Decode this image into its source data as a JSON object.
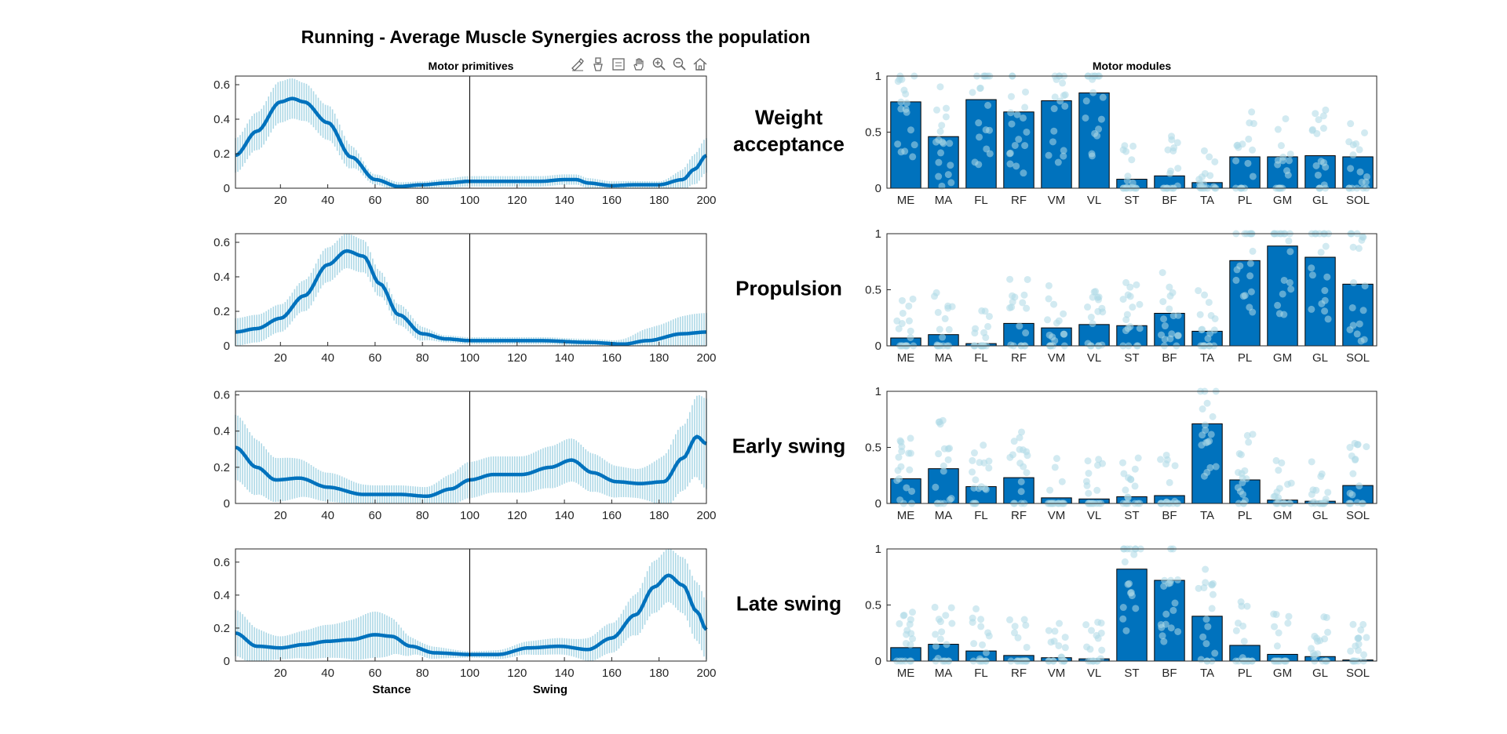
{
  "figure": {
    "title": "Running - Average Muscle Synergies across the population"
  },
  "toolbar": {
    "icons": [
      "brush-icon",
      "data-tips-icon",
      "datatip-list-icon",
      "pan-icon",
      "zoom-in-icon",
      "zoom-out-icon",
      "home-icon"
    ]
  },
  "colors": {
    "line": "#0072BD",
    "band": "#ADD8E6",
    "bar": "#0072BD",
    "dots": "#ADD8E6",
    "axis": "#262626"
  },
  "chart_data": [
    {
      "type": "line",
      "panel": "primitives",
      "row": 0,
      "title": "Motor primitives",
      "synergy_label": "Weight\nacceptance",
      "xlim": [
        1,
        200
      ],
      "ylim": [
        0,
        0.65
      ],
      "xticks": [
        20,
        40,
        60,
        80,
        100,
        120,
        140,
        160,
        180,
        200
      ],
      "yticks": [
        0,
        0.2,
        0.4,
        0.6
      ],
      "vline_x": 100,
      "mean": [
        [
          1,
          0.19
        ],
        [
          10,
          0.33
        ],
        [
          20,
          0.5
        ],
        [
          25,
          0.52
        ],
        [
          30,
          0.5
        ],
        [
          40,
          0.38
        ],
        [
          50,
          0.18
        ],
        [
          60,
          0.05
        ],
        [
          70,
          0.01
        ],
        [
          80,
          0.02
        ],
        [
          90,
          0.03
        ],
        [
          100,
          0.04
        ],
        [
          110,
          0.04
        ],
        [
          120,
          0.04
        ],
        [
          130,
          0.04
        ],
        [
          140,
          0.05
        ],
        [
          145,
          0.05
        ],
        [
          150,
          0.03
        ],
        [
          160,
          0.015
        ],
        [
          170,
          0.02
        ],
        [
          180,
          0.02
        ],
        [
          190,
          0.05
        ],
        [
          195,
          0.11
        ],
        [
          200,
          0.19
        ]
      ],
      "sd": [
        [
          1,
          0.1
        ],
        [
          20,
          0.12
        ],
        [
          40,
          0.1
        ],
        [
          60,
          0.03
        ],
        [
          80,
          0.02
        ],
        [
          100,
          0.03
        ],
        [
          140,
          0.03
        ],
        [
          180,
          0.02
        ],
        [
          200,
          0.1
        ]
      ]
    },
    {
      "type": "line",
      "panel": "primitives",
      "row": 1,
      "synergy_label": "Propulsion",
      "xlim": [
        1,
        200
      ],
      "ylim": [
        0,
        0.65
      ],
      "xticks": [
        20,
        40,
        60,
        80,
        100,
        120,
        140,
        160,
        180,
        200
      ],
      "yticks": [
        0,
        0.2,
        0.4,
        0.6
      ],
      "vline_x": 100,
      "mean": [
        [
          1,
          0.08
        ],
        [
          10,
          0.1
        ],
        [
          20,
          0.16
        ],
        [
          30,
          0.29
        ],
        [
          40,
          0.47
        ],
        [
          48,
          0.55
        ],
        [
          55,
          0.52
        ],
        [
          62,
          0.36
        ],
        [
          70,
          0.18
        ],
        [
          80,
          0.07
        ],
        [
          90,
          0.04
        ],
        [
          100,
          0.03
        ],
        [
          110,
          0.03
        ],
        [
          130,
          0.03
        ],
        [
          150,
          0.02
        ],
        [
          165,
          0.01
        ],
        [
          175,
          0.03
        ],
        [
          190,
          0.07
        ],
        [
          200,
          0.08
        ]
      ],
      "sd": [
        [
          1,
          0.08
        ],
        [
          20,
          0.08
        ],
        [
          40,
          0.1
        ],
        [
          50,
          0.1
        ],
        [
          70,
          0.06
        ],
        [
          90,
          0.02
        ],
        [
          120,
          0.02
        ],
        [
          160,
          0.02
        ],
        [
          180,
          0.08
        ],
        [
          195,
          0.11
        ],
        [
          200,
          0.11
        ]
      ]
    },
    {
      "type": "line",
      "panel": "primitives",
      "row": 2,
      "synergy_label": "Early swing",
      "xlim": [
        1,
        200
      ],
      "ylim": [
        0,
        0.62
      ],
      "xticks": [
        20,
        40,
        60,
        80,
        100,
        120,
        140,
        160,
        180,
        200
      ],
      "yticks": [
        0,
        0.2,
        0.4,
        0.6
      ],
      "vline_x": 100,
      "mean": [
        [
          1,
          0.31
        ],
        [
          10,
          0.2
        ],
        [
          18,
          0.13
        ],
        [
          28,
          0.14
        ],
        [
          40,
          0.09
        ],
        [
          55,
          0.05
        ],
        [
          70,
          0.05
        ],
        [
          82,
          0.04
        ],
        [
          92,
          0.08
        ],
        [
          100,
          0.13
        ],
        [
          110,
          0.16
        ],
        [
          122,
          0.16
        ],
        [
          134,
          0.2
        ],
        [
          143,
          0.24
        ],
        [
          152,
          0.17
        ],
        [
          162,
          0.12
        ],
        [
          172,
          0.11
        ],
        [
          182,
          0.12
        ],
        [
          190,
          0.25
        ],
        [
          196,
          0.37
        ],
        [
          200,
          0.33
        ]
      ],
      "sd": [
        [
          1,
          0.18
        ],
        [
          20,
          0.12
        ],
        [
          40,
          0.08
        ],
        [
          60,
          0.05
        ],
        [
          80,
          0.05
        ],
        [
          100,
          0.1
        ],
        [
          120,
          0.1
        ],
        [
          140,
          0.12
        ],
        [
          170,
          0.08
        ],
        [
          190,
          0.18
        ],
        [
          200,
          0.25
        ]
      ]
    },
    {
      "type": "line",
      "panel": "primitives",
      "row": 3,
      "synergy_label": "Late swing",
      "xlim": [
        1,
        200
      ],
      "ylim": [
        0,
        0.68
      ],
      "xticks": [
        20,
        40,
        60,
        80,
        100,
        120,
        140,
        160,
        180,
        200
      ],
      "yticks": [
        0,
        0.2,
        0.4,
        0.6
      ],
      "vline_x": 100,
      "xlabels": [
        {
          "x": 67,
          "text": "Stance"
        },
        {
          "x": 134,
          "text": "Swing"
        }
      ],
      "mean": [
        [
          1,
          0.17
        ],
        [
          10,
          0.09
        ],
        [
          20,
          0.08
        ],
        [
          30,
          0.1
        ],
        [
          40,
          0.12
        ],
        [
          50,
          0.13
        ],
        [
          60,
          0.16
        ],
        [
          67,
          0.15
        ],
        [
          75,
          0.09
        ],
        [
          85,
          0.05
        ],
        [
          100,
          0.04
        ],
        [
          112,
          0.04
        ],
        [
          125,
          0.08
        ],
        [
          138,
          0.09
        ],
        [
          150,
          0.07
        ],
        [
          160,
          0.14
        ],
        [
          170,
          0.28
        ],
        [
          178,
          0.45
        ],
        [
          184,
          0.52
        ],
        [
          190,
          0.46
        ],
        [
          196,
          0.3
        ],
        [
          200,
          0.19
        ]
      ],
      "sd": [
        [
          1,
          0.14
        ],
        [
          20,
          0.07
        ],
        [
          40,
          0.1
        ],
        [
          60,
          0.14
        ],
        [
          80,
          0.04
        ],
        [
          100,
          0.02
        ],
        [
          140,
          0.05
        ],
        [
          160,
          0.09
        ],
        [
          180,
          0.16
        ],
        [
          200,
          0.18
        ]
      ]
    },
    {
      "type": "bar",
      "panel": "modules",
      "row": 0,
      "title": "Motor modules",
      "categories": [
        "ME",
        "MA",
        "FL",
        "RF",
        "VM",
        "VL",
        "ST",
        "BF",
        "TA",
        "PL",
        "GM",
        "GL",
        "SOL"
      ],
      "values": [
        0.77,
        0.46,
        0.79,
        0.68,
        0.78,
        0.85,
        0.08,
        0.11,
        0.05,
        0.28,
        0.28,
        0.29,
        0.28
      ],
      "ylim": [
        0,
        1
      ],
      "yticks": [
        0,
        0.5,
        1
      ]
    },
    {
      "type": "bar",
      "panel": "modules",
      "row": 1,
      "categories": [
        "ME",
        "MA",
        "FL",
        "RF",
        "VM",
        "VL",
        "ST",
        "BF",
        "TA",
        "PL",
        "GM",
        "GL",
        "SOL"
      ],
      "values": [
        0.07,
        0.1,
        0.02,
        0.2,
        0.16,
        0.19,
        0.18,
        0.29,
        0.13,
        0.76,
        0.89,
        0.79,
        0.55
      ],
      "ylim": [
        0,
        1
      ],
      "yticks": [
        0,
        0.5,
        1
      ]
    },
    {
      "type": "bar",
      "panel": "modules",
      "row": 2,
      "categories": [
        "ME",
        "MA",
        "FL",
        "RF",
        "VM",
        "VL",
        "ST",
        "BF",
        "TA",
        "PL",
        "GM",
        "GL",
        "SOL"
      ],
      "values": [
        0.22,
        0.31,
        0.15,
        0.23,
        0.05,
        0.04,
        0.06,
        0.07,
        0.71,
        0.21,
        0.03,
        0.02,
        0.16
      ],
      "ylim": [
        0,
        1
      ],
      "yticks": [
        0,
        0.5,
        1
      ]
    },
    {
      "type": "bar",
      "panel": "modules",
      "row": 3,
      "categories": [
        "ME",
        "MA",
        "FL",
        "RF",
        "VM",
        "VL",
        "ST",
        "BF",
        "TA",
        "PL",
        "GM",
        "GL",
        "SOL"
      ],
      "values": [
        0.12,
        0.15,
        0.09,
        0.05,
        0.03,
        0.02,
        0.82,
        0.72,
        0.4,
        0.14,
        0.06,
        0.04,
        0.01
      ],
      "ylim": [
        0,
        1
      ],
      "yticks": [
        0,
        0.5,
        1
      ]
    }
  ]
}
